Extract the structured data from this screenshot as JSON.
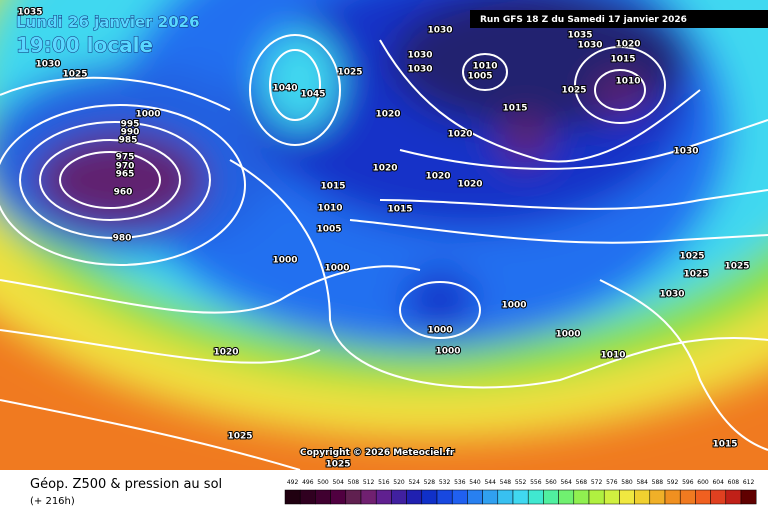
{
  "header": {
    "date": "Lundi 26 janvier 2026",
    "time": "19:00 locale",
    "run": "Run GFS 18 Z du Samedi 17 janvier 2026"
  },
  "map": {
    "isobar_labels": [
      1035,
      1030,
      1025,
      1000,
      995,
      990,
      985,
      975,
      970,
      965,
      960,
      980,
      1020,
      1025,
      1025,
      1040,
      1045,
      1025,
      1020,
      1030,
      1030,
      1030,
      1020,
      1020,
      1020,
      1020,
      1015,
      1010,
      1005,
      1015,
      1000,
      1000,
      1000,
      1000,
      1000,
      1000,
      1010,
      1005,
      1015,
      1035,
      1030,
      1020,
      1015,
      1010,
      1025,
      1030,
      1025,
      1025,
      1025,
      1030,
      1010,
      1015
    ],
    "copyright": "Copyright © 2026 Meteociel.fr"
  },
  "legend": {
    "title": "Géop. Z500 & pression au sol",
    "lead": "(+ 216h)",
    "scale": [
      492,
      496,
      500,
      504,
      508,
      512,
      516,
      520,
      524,
      528,
      532,
      536,
      540,
      544,
      548,
      552,
      556,
      560,
      564,
      568,
      572,
      576,
      580,
      584,
      588,
      592,
      596,
      600,
      604,
      608,
      612
    ]
  }
}
